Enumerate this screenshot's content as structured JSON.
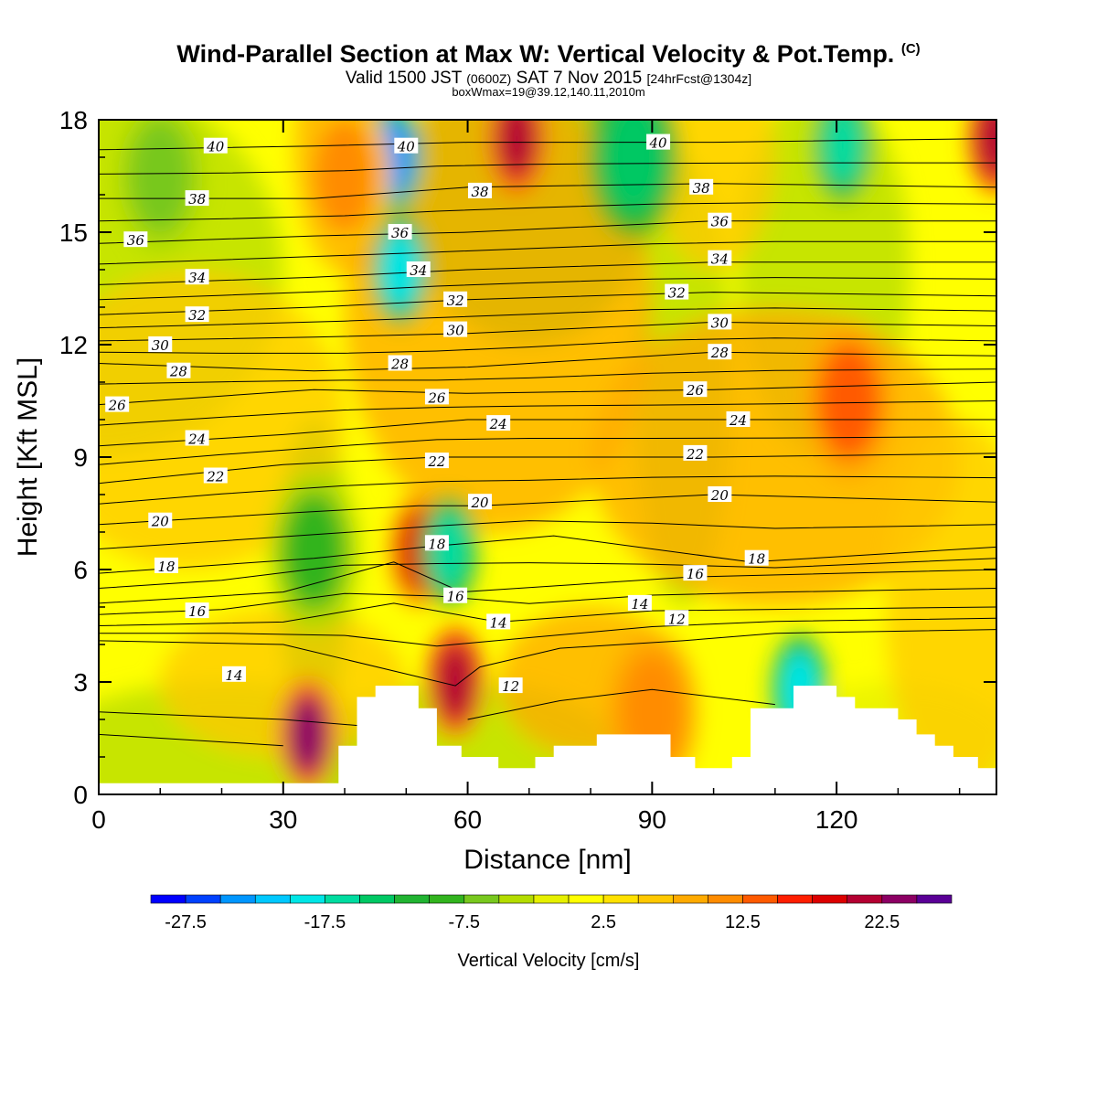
{
  "titles": {
    "main": "Wind-Parallel Section at Max W: Vertical Velocity & Pot.Temp.",
    "copyright": "(C)",
    "valid_a": "Valid 1500 JST",
    "valid_b": "(0600Z)",
    "valid_c": "SAT 7 Nov 2015",
    "valid_d": "[24hrFcst@1304z]",
    "box": "boxWmax=19@39.12,140.11,2010m"
  },
  "chart_data": {
    "type": "heatmap",
    "title": "Wind-Parallel Section at Max W: Vertical Velocity & Pot.Temp.",
    "xlabel": "Distance [nm]",
    "ylabel": "Height [Kft MSL]",
    "xlim": [
      0,
      146
    ],
    "ylim": [
      0,
      18
    ],
    "xticks": [
      "0",
      "30",
      "60",
      "90",
      "120"
    ],
    "yticks": [
      "0",
      "3",
      "6",
      "9",
      "12",
      "15",
      "18"
    ],
    "colorbar": {
      "label": "Vertical Velocity [cm/s]",
      "tick_labels": [
        "-27.5",
        "-17.5",
        "-7.5",
        "2.5",
        "12.5",
        "22.5"
      ],
      "colors": [
        "#0000ff",
        "#0041ff",
        "#0096ff",
        "#00c8ff",
        "#00e6e6",
        "#00dca0",
        "#00c864",
        "#21b432",
        "#32b41e",
        "#78c81e",
        "#b4dc00",
        "#e6f000",
        "#ffff00",
        "#ffe100",
        "#ffc800",
        "#ffaa00",
        "#ff8c00",
        "#ff5a00",
        "#ff1e00",
        "#dc0000",
        "#b40032",
        "#8c0064",
        "#5a0096"
      ]
    },
    "terrain_profile": {
      "x": [
        0,
        39,
        39,
        42,
        42,
        45,
        45,
        52,
        52,
        55,
        55,
        59,
        59,
        65,
        65,
        71,
        71,
        74,
        74,
        81,
        81,
        93,
        93,
        97,
        97,
        103,
        103,
        106,
        106,
        113,
        113,
        120,
        120,
        123,
        123,
        130,
        130,
        133,
        133,
        136,
        136,
        139,
        139,
        143,
        143,
        146
      ],
      "y": [
        0.3,
        0.3,
        1.3,
        1.3,
        2.6,
        2.6,
        2.9,
        2.9,
        2.3,
        2.3,
        1.3,
        1.3,
        1.0,
        1.0,
        0.7,
        0.7,
        1.0,
        1.0,
        1.3,
        1.3,
        1.6,
        1.6,
        1.0,
        1.0,
        0.7,
        0.7,
        1.0,
        1.0,
        2.3,
        2.3,
        2.9,
        2.9,
        2.6,
        2.6,
        2.3,
        2.3,
        2.0,
        2.0,
        1.6,
        1.6,
        1.3,
        1.3,
        1.0,
        1.0,
        0.7,
        0.7
      ]
    },
    "w_features": [
      {
        "x": 34,
        "z": 1.6,
        "w": 22
      },
      {
        "x": 58,
        "z": 3.0,
        "w": 20
      },
      {
        "x": 52,
        "z": 6.5,
        "w": 18
      },
      {
        "x": 68,
        "z": 17.5,
        "w": 20
      },
      {
        "x": 146,
        "z": 17.5,
        "w": 20
      },
      {
        "x": 48,
        "z": 17.0,
        "w": -25
      },
      {
        "x": 49,
        "z": 14.0,
        "w": -20
      },
      {
        "x": 57,
        "z": 6.5,
        "w": -17
      },
      {
        "x": 114,
        "z": 2.8,
        "w": -20
      },
      {
        "x": 121,
        "z": 17.3,
        "w": -18
      },
      {
        "x": 87,
        "z": 17.0,
        "w": -15
      },
      {
        "x": 35,
        "z": 6.5,
        "w": -9
      },
      {
        "x": 10,
        "z": 16.5,
        "w": -8
      },
      {
        "x": 122,
        "z": 10.5,
        "w": 12
      },
      {
        "x": 40,
        "z": 16.5,
        "w": 10
      },
      {
        "x": 90,
        "z": 2.2,
        "w": 11
      }
    ],
    "theta_contours": [
      {
        "label": "12",
        "points": [
          [
            0,
            4.1
          ],
          [
            30,
            4.0
          ],
          [
            58,
            2.9
          ],
          [
            62,
            3.4
          ],
          [
            75,
            3.9
          ],
          [
            95,
            4.1
          ],
          [
            110,
            4.3
          ],
          [
            146,
            4.4
          ]
        ]
      },
      {
        "label": "14",
        "points": [
          [
            0,
            4.5
          ],
          [
            30,
            4.6
          ],
          [
            48,
            5.1
          ],
          [
            65,
            4.6
          ],
          [
            90,
            4.9
          ],
          [
            146,
            5.0
          ]
        ]
      },
      {
        "label": "16",
        "points": [
          [
            0,
            5.1
          ],
          [
            30,
            5.4
          ],
          [
            48,
            6.2
          ],
          [
            59,
            5.4
          ],
          [
            96,
            5.8
          ],
          [
            146,
            6.0
          ]
        ]
      },
      {
        "label": "18",
        "points": [
          [
            0,
            5.9
          ],
          [
            35,
            6.3
          ],
          [
            53,
            6.6
          ],
          [
            74,
            6.9
          ],
          [
            106,
            6.2
          ],
          [
            146,
            6.6
          ]
        ]
      },
      {
        "label": "20",
        "points": [
          [
            0,
            7.2
          ],
          [
            30,
            7.5
          ],
          [
            52,
            7.7
          ],
          [
            62,
            7.7
          ],
          [
            100,
            8.0
          ],
          [
            146,
            7.8
          ]
        ]
      },
      {
        "label": "22",
        "points": [
          [
            0,
            8.3
          ],
          [
            30,
            8.8
          ],
          [
            55,
            9.0
          ],
          [
            100,
            9.0
          ],
          [
            146,
            9.1
          ]
        ]
      },
      {
        "label": "24",
        "points": [
          [
            0,
            9.3
          ],
          [
            30,
            9.6
          ],
          [
            60,
            10.0
          ],
          [
            100,
            10.0
          ],
          [
            146,
            10.0
          ]
        ]
      },
      {
        "label": "26",
        "points": [
          [
            0,
            10.4
          ],
          [
            35,
            10.8
          ],
          [
            60,
            10.7
          ],
          [
            100,
            10.8
          ],
          [
            146,
            11.0
          ]
        ]
      },
      {
        "label": "28",
        "points": [
          [
            0,
            11.5
          ],
          [
            35,
            11.3
          ],
          [
            60,
            11.4
          ],
          [
            100,
            11.8
          ],
          [
            146,
            11.7
          ]
        ]
      },
      {
        "label": "30",
        "points": [
          [
            0,
            12.1
          ],
          [
            35,
            12.2
          ],
          [
            60,
            12.3
          ],
          [
            100,
            12.6
          ],
          [
            146,
            12.5
          ]
        ]
      },
      {
        "label": "32",
        "points": [
          [
            0,
            12.8
          ],
          [
            35,
            13.0
          ],
          [
            60,
            13.2
          ],
          [
            100,
            13.4
          ],
          [
            146,
            13.3
          ]
        ]
      },
      {
        "label": "34",
        "points": [
          [
            0,
            13.6
          ],
          [
            35,
            13.8
          ],
          [
            60,
            14.0
          ],
          [
            100,
            14.2
          ],
          [
            146,
            14.2
          ]
        ]
      },
      {
        "label": "36",
        "points": [
          [
            0,
            14.7
          ],
          [
            35,
            14.9
          ],
          [
            60,
            15.0
          ],
          [
            100,
            15.3
          ],
          [
            146,
            15.3
          ]
        ]
      },
      {
        "label": "38",
        "points": [
          [
            0,
            15.9
          ],
          [
            35,
            15.9
          ],
          [
            60,
            16.2
          ],
          [
            100,
            16.3
          ],
          [
            146,
            16.2
          ]
        ]
      },
      {
        "label": "40",
        "points": [
          [
            0,
            17.2
          ],
          [
            35,
            17.3
          ],
          [
            60,
            17.4
          ],
          [
            100,
            17.4
          ],
          [
            146,
            17.5
          ]
        ]
      }
    ],
    "contour_labels": [
      {
        "text": "40",
        "x": 19,
        "y": 17.3
      },
      {
        "text": "40",
        "x": 50,
        "y": 17.3
      },
      {
        "text": "40",
        "x": 91,
        "y": 17.4
      },
      {
        "text": "38",
        "x": 16,
        "y": 15.9
      },
      {
        "text": "38",
        "x": 62,
        "y": 16.1
      },
      {
        "text": "38",
        "x": 98,
        "y": 16.2
      },
      {
        "text": "36",
        "x": 6,
        "y": 14.8
      },
      {
        "text": "36",
        "x": 49,
        "y": 15.0
      },
      {
        "text": "36",
        "x": 101,
        "y": 15.3
      },
      {
        "text": "34",
        "x": 16,
        "y": 13.8
      },
      {
        "text": "34",
        "x": 52,
        "y": 14.0
      },
      {
        "text": "34",
        "x": 101,
        "y": 14.3
      },
      {
        "text": "32",
        "x": 16,
        "y": 12.8
      },
      {
        "text": "32",
        "x": 58,
        "y": 13.2
      },
      {
        "text": "32",
        "x": 94,
        "y": 13.4
      },
      {
        "text": "30",
        "x": 10,
        "y": 12.0
      },
      {
        "text": "30",
        "x": 58,
        "y": 12.4
      },
      {
        "text": "30",
        "x": 101,
        "y": 12.6
      },
      {
        "text": "28",
        "x": 13,
        "y": 11.3
      },
      {
        "text": "28",
        "x": 49,
        "y": 11.5
      },
      {
        "text": "28",
        "x": 101,
        "y": 11.8
      },
      {
        "text": "26",
        "x": 3,
        "y": 10.4
      },
      {
        "text": "26",
        "x": 55,
        "y": 10.6
      },
      {
        "text": "26",
        "x": 97,
        "y": 10.8
      },
      {
        "text": "24",
        "x": 16,
        "y": 9.5
      },
      {
        "text": "24",
        "x": 65,
        "y": 9.9
      },
      {
        "text": "24",
        "x": 104,
        "y": 10.0
      },
      {
        "text": "22",
        "x": 19,
        "y": 8.5
      },
      {
        "text": "22",
        "x": 55,
        "y": 8.9
      },
      {
        "text": "22",
        "x": 97,
        "y": 9.1
      },
      {
        "text": "20",
        "x": 10,
        "y": 7.3
      },
      {
        "text": "20",
        "x": 62,
        "y": 7.8
      },
      {
        "text": "20",
        "x": 101,
        "y": 8.0
      },
      {
        "text": "18",
        "x": 11,
        "y": 6.1
      },
      {
        "text": "18",
        "x": 55,
        "y": 6.7
      },
      {
        "text": "18",
        "x": 107,
        "y": 6.3
      },
      {
        "text": "16",
        "x": 16,
        "y": 4.9
      },
      {
        "text": "16",
        "x": 58,
        "y": 5.3
      },
      {
        "text": "16",
        "x": 97,
        "y": 5.9
      },
      {
        "text": "14",
        "x": 22,
        "y": 3.2
      },
      {
        "text": "14",
        "x": 65,
        "y": 4.6
      },
      {
        "text": "14",
        "x": 88,
        "y": 5.1
      },
      {
        "text": "12",
        "x": 67,
        "y": 2.9
      },
      {
        "text": "12",
        "x": 94,
        "y": 4.7
      }
    ]
  }
}
